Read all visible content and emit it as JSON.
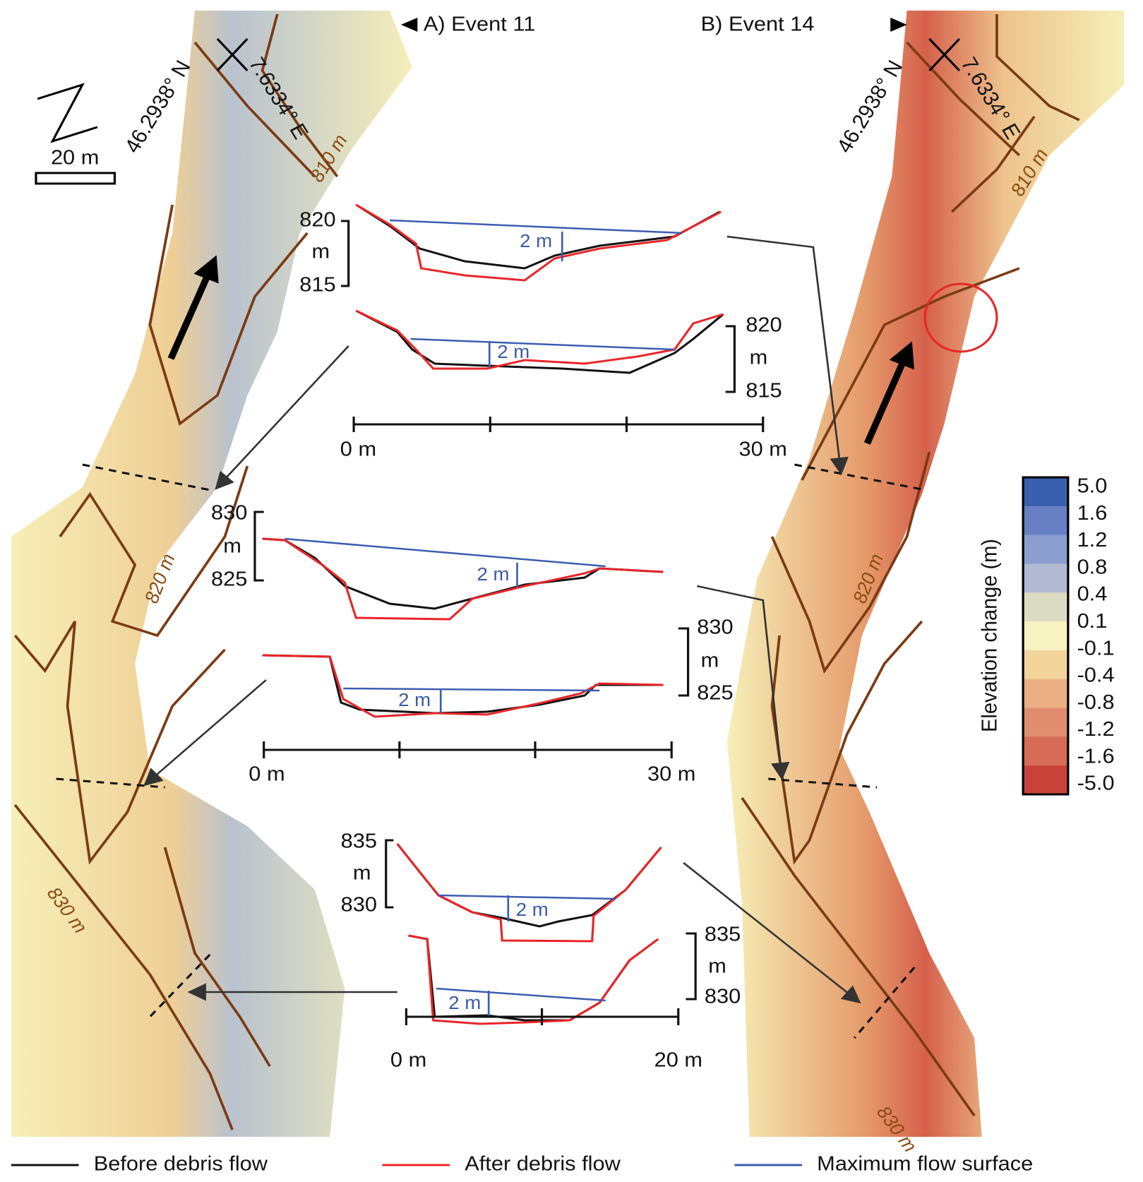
{
  "panels": [
    {
      "title": "A) Event 11",
      "latitude": "46.2938° N",
      "longitude": "7.6334° E",
      "contours": [
        "810 m",
        "820 m",
        "830 m"
      ]
    },
    {
      "title": "B) Event 14",
      "latitude": "46.2938° N",
      "longitude": "7.6334° E",
      "contours": [
        "810 m",
        "820 m",
        "830 m"
      ]
    }
  ],
  "scale_bar": "20 m",
  "profiles": [
    {
      "upper": {
        "top": "820",
        "unit": "m",
        "bottom": "815",
        "depth_label": "2 m"
      },
      "lower": {
        "top": "820",
        "unit": "m",
        "bottom": "815",
        "depth_label": "2 m"
      },
      "x_start": "0 m",
      "x_end": "30 m"
    },
    {
      "upper": {
        "top": "830",
        "unit": "m",
        "bottom": "825",
        "depth_label": "2 m"
      },
      "lower": {
        "top": "830",
        "unit": "m",
        "bottom": "825",
        "depth_label": "2 m"
      },
      "x_start": "0 m",
      "x_end": "30 m"
    },
    {
      "upper": {
        "top": "835",
        "unit": "m",
        "bottom": "830",
        "depth_label": "2 m"
      },
      "lower": {
        "top": "835",
        "unit": "m",
        "bottom": "830",
        "depth_label": "2 m"
      },
      "x_start": "0 m",
      "x_end": "20 m"
    }
  ],
  "colorbar": {
    "title": "Elevation change (m)",
    "labels": [
      "5.0",
      "1.6",
      "1.2",
      "0.8",
      "0.4",
      "0.1",
      "-0.1",
      "-0.4",
      "-0.8",
      "-1.2",
      "-1.6",
      "-5.0"
    ],
    "colors": [
      "#3a5fae",
      "#6680c3",
      "#8c9ecf",
      "#b2bbd3",
      "#dcdcc4",
      "#f7f2c2",
      "#f3d49b",
      "#eab084",
      "#e08d6f",
      "#d66c58",
      "#c8423a"
    ]
  },
  "legend": [
    {
      "name": "Before debris flow",
      "color": "#111111"
    },
    {
      "name": "After debris flow",
      "color": "#e8262a"
    },
    {
      "name": "Maximum flow surface",
      "color": "#3c5db0"
    }
  ]
}
